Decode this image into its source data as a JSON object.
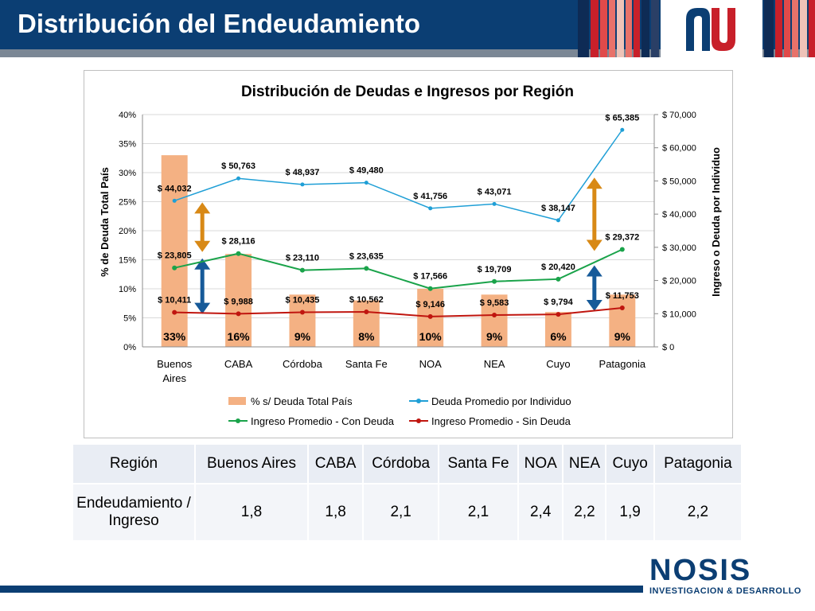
{
  "slide": {
    "title": "Distribución del Endeudamiento"
  },
  "colors": {
    "header": "#0b3e73",
    "bars": "#f4b183",
    "deuda_line": "#1f9fd6",
    "con_deuda_line": "#1aa34a",
    "sin_deuda_line": "#c0160f",
    "arrow_orange": "#d88916",
    "arrow_blue": "#165a99"
  },
  "chart_data": {
    "type": "bar",
    "title": "Distribución de Deudas e Ingresos por Región",
    "categories": [
      "Buenos Aires",
      "CABA",
      "Córdoba",
      "Santa Fe",
      "NOA",
      "NEA",
      "Cuyo",
      "Patagonia"
    ],
    "ylabel": "% de Deuda Total País",
    "y2label": "Ingreso o Deuda por Individuo",
    "ylim": [
      0,
      40
    ],
    "y2lim": [
      0,
      70000
    ],
    "yticks": [
      "0%",
      "5%",
      "10%",
      "15%",
      "20%",
      "25%",
      "30%",
      "35%",
      "40%"
    ],
    "y2ticks": [
      "$ 0",
      "$ 10,000",
      "$ 20,000",
      "$ 30,000",
      "$ 40,000",
      "$ 50,000",
      "$ 60,000",
      "$ 70,000"
    ],
    "grid": true,
    "legend_position": "bottom",
    "bar_series": {
      "name": "% s/ Deuda Total País",
      "values": [
        33,
        16,
        9,
        8,
        10,
        9,
        6,
        9
      ],
      "labels": [
        "33%",
        "16%",
        "9%",
        "8%",
        "10%",
        "9%",
        "6%",
        "9%"
      ]
    },
    "line_series": [
      {
        "name": "Deuda Promedio por Individuo",
        "values": [
          44032,
          50763,
          48937,
          49480,
          41756,
          43071,
          38147,
          65385
        ],
        "labels": [
          "$ 44,032",
          "$ 50,763",
          "$ 48,937",
          "$ 49,480",
          "$ 41,756",
          "$ 43,071",
          "$ 38,147",
          "$ 65,385"
        ]
      },
      {
        "name": "Ingreso Promedio - Con Deuda",
        "values": [
          23805,
          28116,
          23110,
          23635,
          17566,
          19709,
          20420,
          29372
        ],
        "labels": [
          "$ 23,805",
          "$ 28,116",
          "$ 23,110",
          "$ 23,635",
          "$ 17,566",
          "$ 19,709",
          "$ 20,420",
          "$ 29,372"
        ]
      },
      {
        "name": "Ingreso Promedio - Sin Deuda",
        "values": [
          10411,
          9988,
          10435,
          10562,
          9146,
          9583,
          9794,
          11753
        ],
        "labels": [
          "$ 10,411",
          "$ 9,988",
          "$ 10,435",
          "$ 10,562",
          "$ 9,146",
          "$ 9,583",
          "$ 9,794",
          "$ 11,753"
        ]
      }
    ]
  },
  "table": {
    "header": [
      "Región",
      "Buenos Aires",
      "CABA",
      "Córdoba",
      "Santa Fe",
      "NOA",
      "NEA",
      "Cuyo",
      "Patagonia"
    ],
    "row": [
      "Endeudamiento / Ingreso",
      "1,8",
      "1,8",
      "2,1",
      "2,1",
      "2,4",
      "2,2",
      "1,9",
      "2,2"
    ]
  },
  "brand": {
    "name": "NOSIS",
    "tagline": "INVESTIGACION & DESARROLLO"
  }
}
